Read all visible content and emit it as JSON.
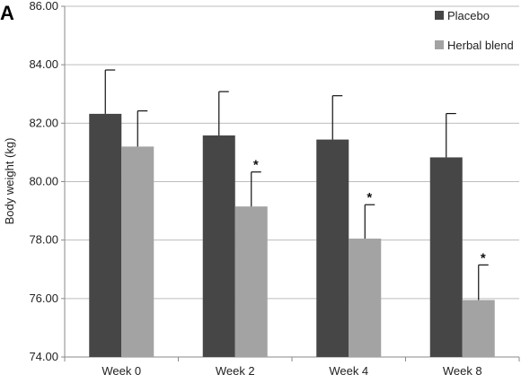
{
  "panel_label": "A",
  "chart_data": {
    "type": "bar",
    "categories": [
      "Week 0",
      "Week 2",
      "Week 4",
      "Week 8"
    ],
    "series": [
      {
        "name": "Placebo",
        "color": "#464646",
        "values": [
          82.32,
          81.58,
          81.44,
          80.83
        ],
        "errors": [
          1.5,
          1.5,
          1.5,
          1.5
        ],
        "significant": [
          false,
          false,
          false,
          false
        ]
      },
      {
        "name": "Herbal blend",
        "color": "#a3a3a3",
        "values": [
          81.2,
          79.15,
          78.05,
          75.95
        ],
        "errors": [
          1.22,
          1.18,
          1.16,
          1.2
        ],
        "significant": [
          false,
          true,
          true,
          true
        ]
      }
    ],
    "significance_symbol": "*",
    "title": "",
    "xlabel": "",
    "ylabel": "Body weight (kg)",
    "ylim": [
      74.0,
      86.0
    ],
    "yticks": [
      "74.00",
      "76.00",
      "78.00",
      "80.00",
      "82.00",
      "84.00",
      "86.00"
    ],
    "grid": true,
    "legend_position": "top-right"
  }
}
